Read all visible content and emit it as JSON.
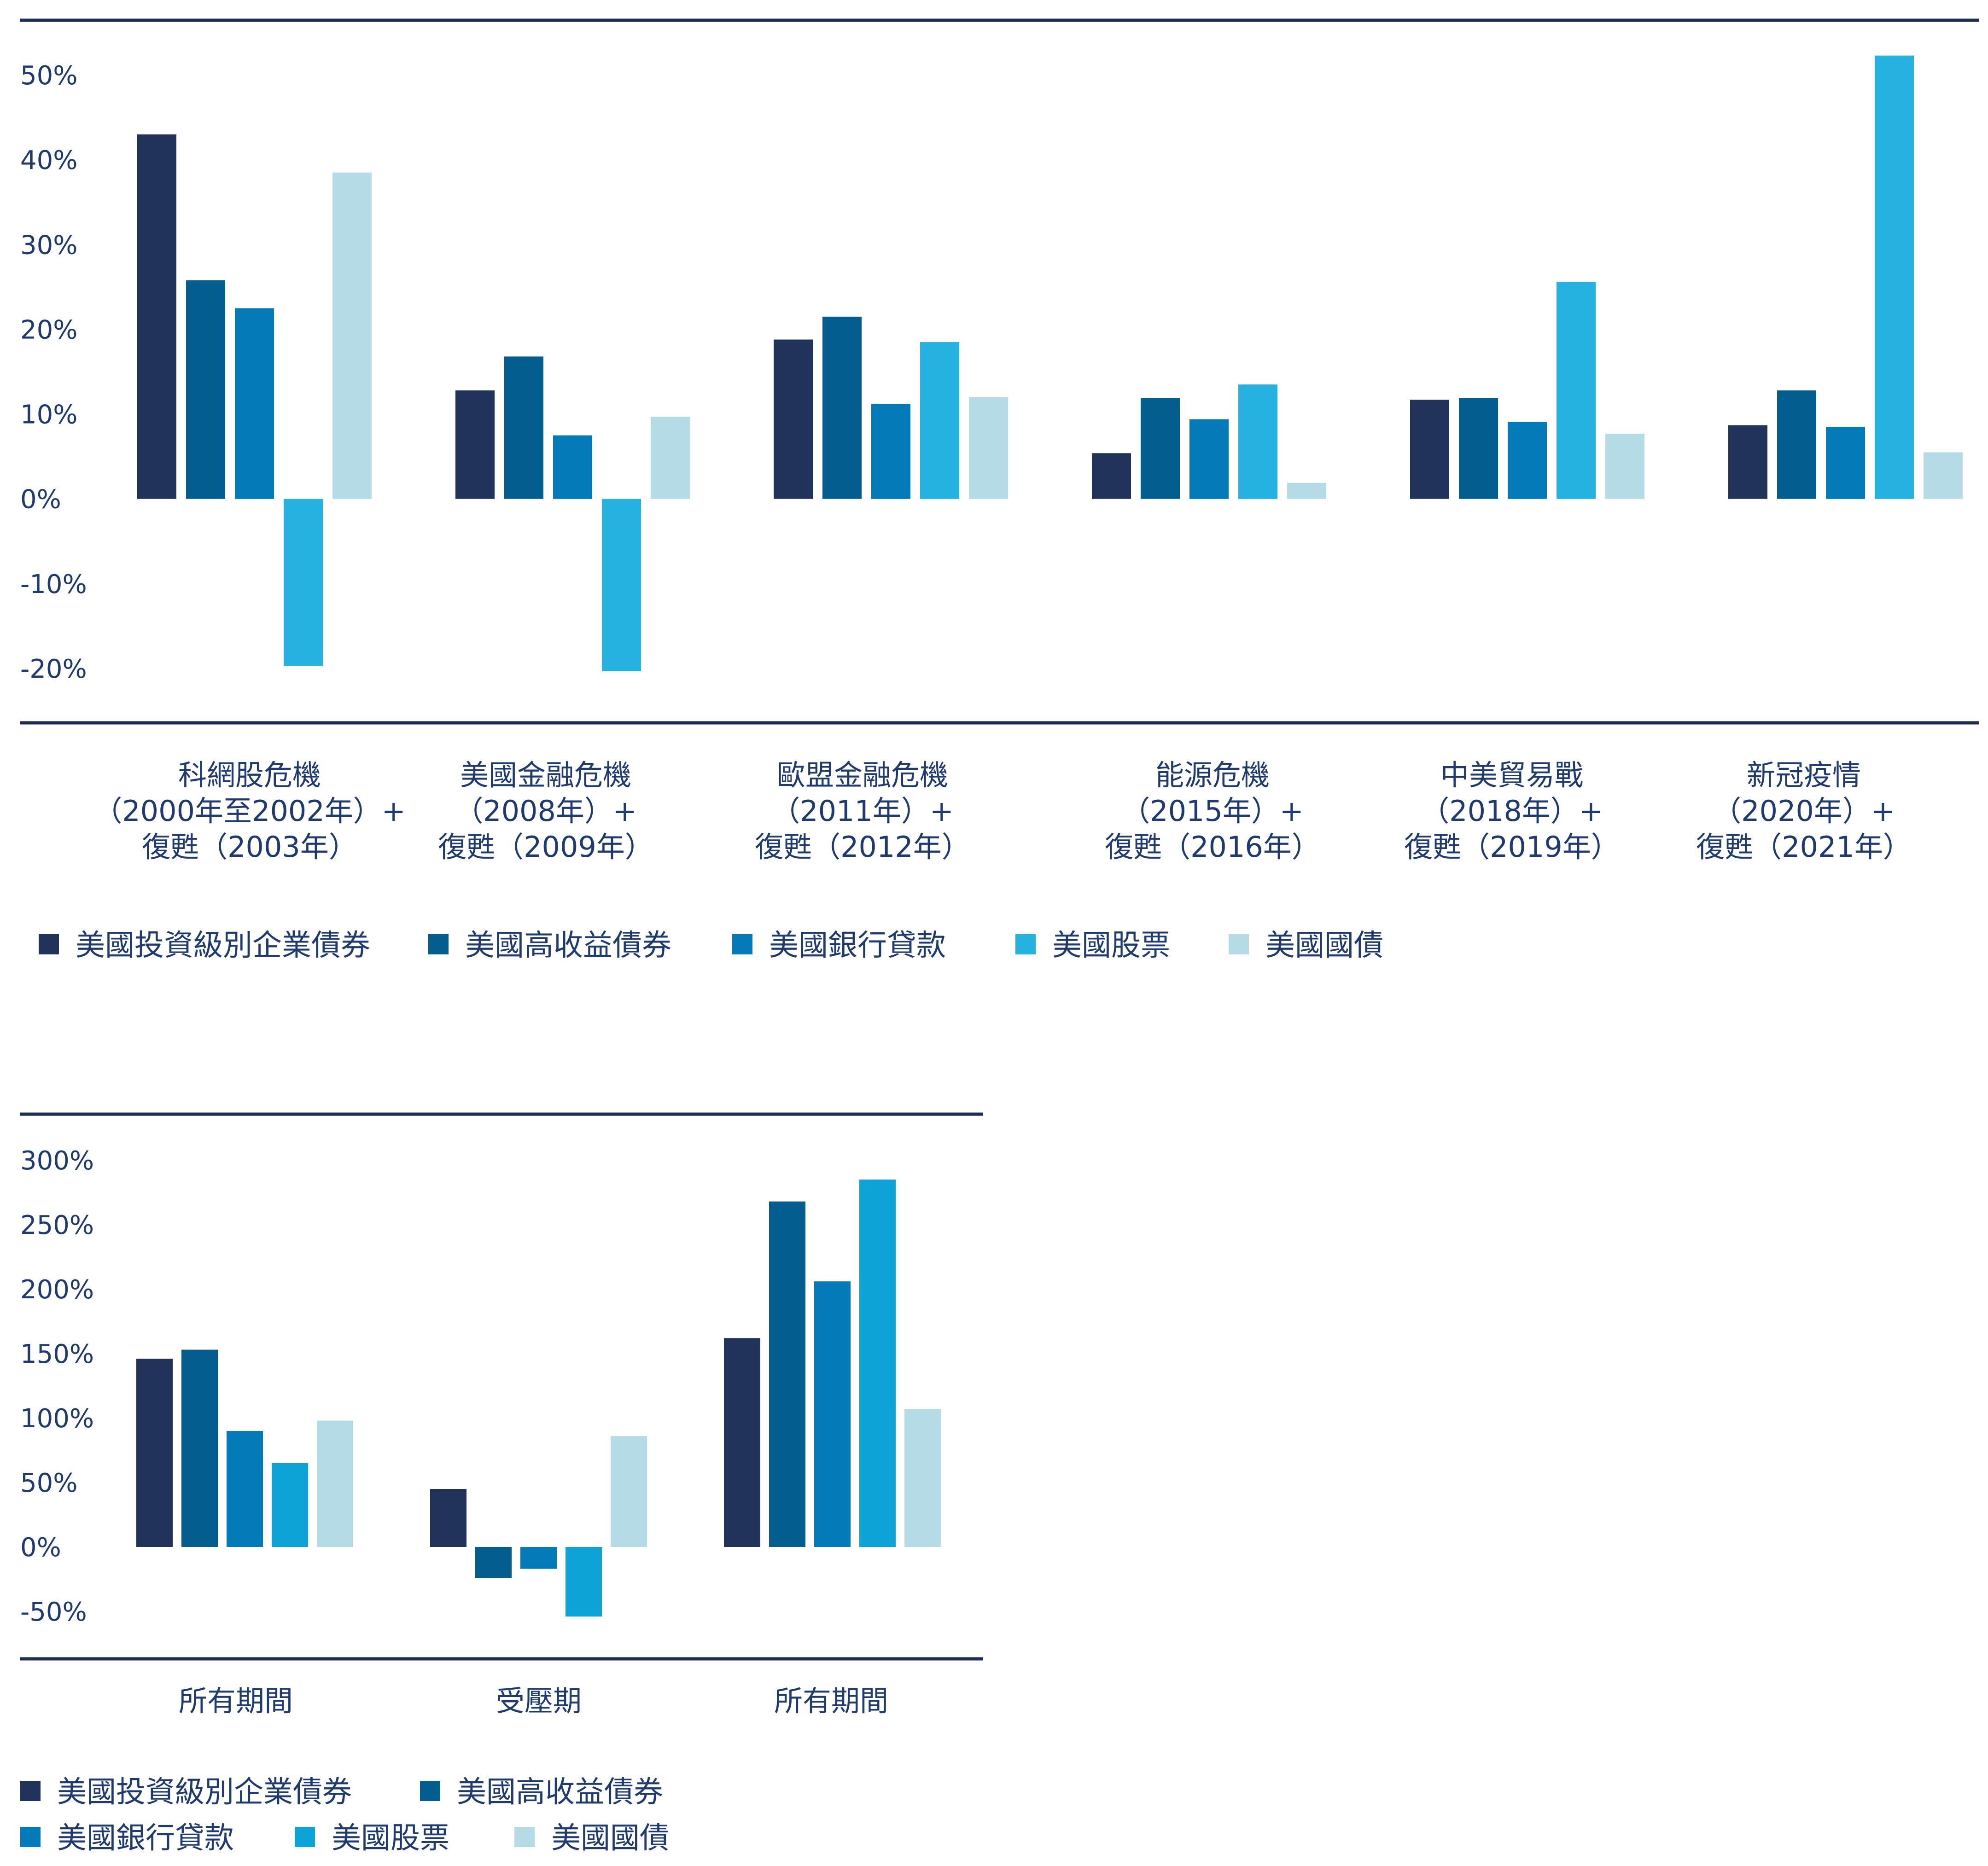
{
  "chart_data": [
    {
      "type": "bar",
      "ylim": [
        -20,
        50
      ],
      "yticks": [
        "50%",
        "40%",
        "30%",
        "20%",
        "10%",
        "0%",
        "-10%",
        "-20%"
      ],
      "ytick_values": [
        50,
        40,
        30,
        20,
        10,
        0,
        -10,
        -20
      ],
      "categories": [
        [
          "科網股危機",
          "（2000年至2002年）+",
          "復甦（2003年）"
        ],
        [
          "美國金融危機",
          "（2008年）+",
          "復甦（2009年）"
        ],
        [
          "歐盟金融危機",
          "（2011年）+",
          "復甦（2012年）"
        ],
        [
          "能源危機",
          "（2015年）+",
          "復甦（2016年）"
        ],
        [
          "中美貿易戰",
          "（2018年）+",
          "復甦（2019年）"
        ],
        [
          "新冠疫情",
          "（2020年）+",
          "復甦（2021年）"
        ]
      ],
      "series": [
        {
          "name": "美國投資級別企業債券",
          "color": "#22335b",
          "values": [
            43.0,
            12.8,
            18.8,
            5.4,
            11.7,
            8.7
          ]
        },
        {
          "name": "美國高收益債券",
          "color": "#035e8f",
          "values": [
            25.8,
            16.8,
            21.5,
            11.9,
            11.9,
            12.8
          ]
        },
        {
          "name": "美國銀行貸款",
          "color": "#047bb8",
          "values": [
            22.5,
            7.5,
            11.2,
            9.4,
            9.1,
            8.5
          ]
        },
        {
          "name": "美國股票",
          "color": "#26b2e0",
          "values": [
            -19.7,
            -20.3,
            18.5,
            13.5,
            25.6,
            52.3
          ]
        },
        {
          "name": "美國國債",
          "color": "#b5dbe7",
          "values": [
            38.5,
            9.7,
            12.0,
            1.9,
            7.7,
            5.5
          ]
        }
      ],
      "legend": [
        "美國投資級別企業債券",
        "美國高收益債券",
        "美國銀行貸款",
        "美國股票",
        "美國國債"
      ],
      "legend_position": "bottom"
    },
    {
      "type": "bar",
      "ylim": [
        -50,
        300
      ],
      "yticks": [
        "300%",
        "250%",
        "200%",
        "150%",
        "100%",
        "50%",
        "0%",
        "-50%"
      ],
      "ytick_values": [
        300,
        250,
        200,
        150,
        100,
        50,
        0,
        -50
      ],
      "categories": [
        [
          "所有期間"
        ],
        [
          "受壓期"
        ],
        [
          "所有期間"
        ]
      ],
      "series": [
        {
          "name": "美國投資級別企業債券",
          "color": "#22335b",
          "values": [
            146,
            45,
            162
          ]
        },
        {
          "name": "美國高收益債券",
          "color": "#035e8f",
          "values": [
            153,
            -24,
            268
          ]
        },
        {
          "name": "美國銀行貸款",
          "color": "#047bb8",
          "values": [
            90,
            -17,
            206
          ]
        },
        {
          "name": "美國股票",
          "color": "#0da3d6",
          "values": [
            65,
            -54,
            285
          ]
        },
        {
          "name": "美國國債",
          "color": "#b5dbe7",
          "values": [
            98,
            86,
            107
          ]
        }
      ],
      "legend": [
        "美國投資級別企業債券",
        "美國高收益債券",
        "美國銀行貸款",
        "美國股票",
        "美國國債"
      ],
      "legend_position": "bottom"
    }
  ]
}
